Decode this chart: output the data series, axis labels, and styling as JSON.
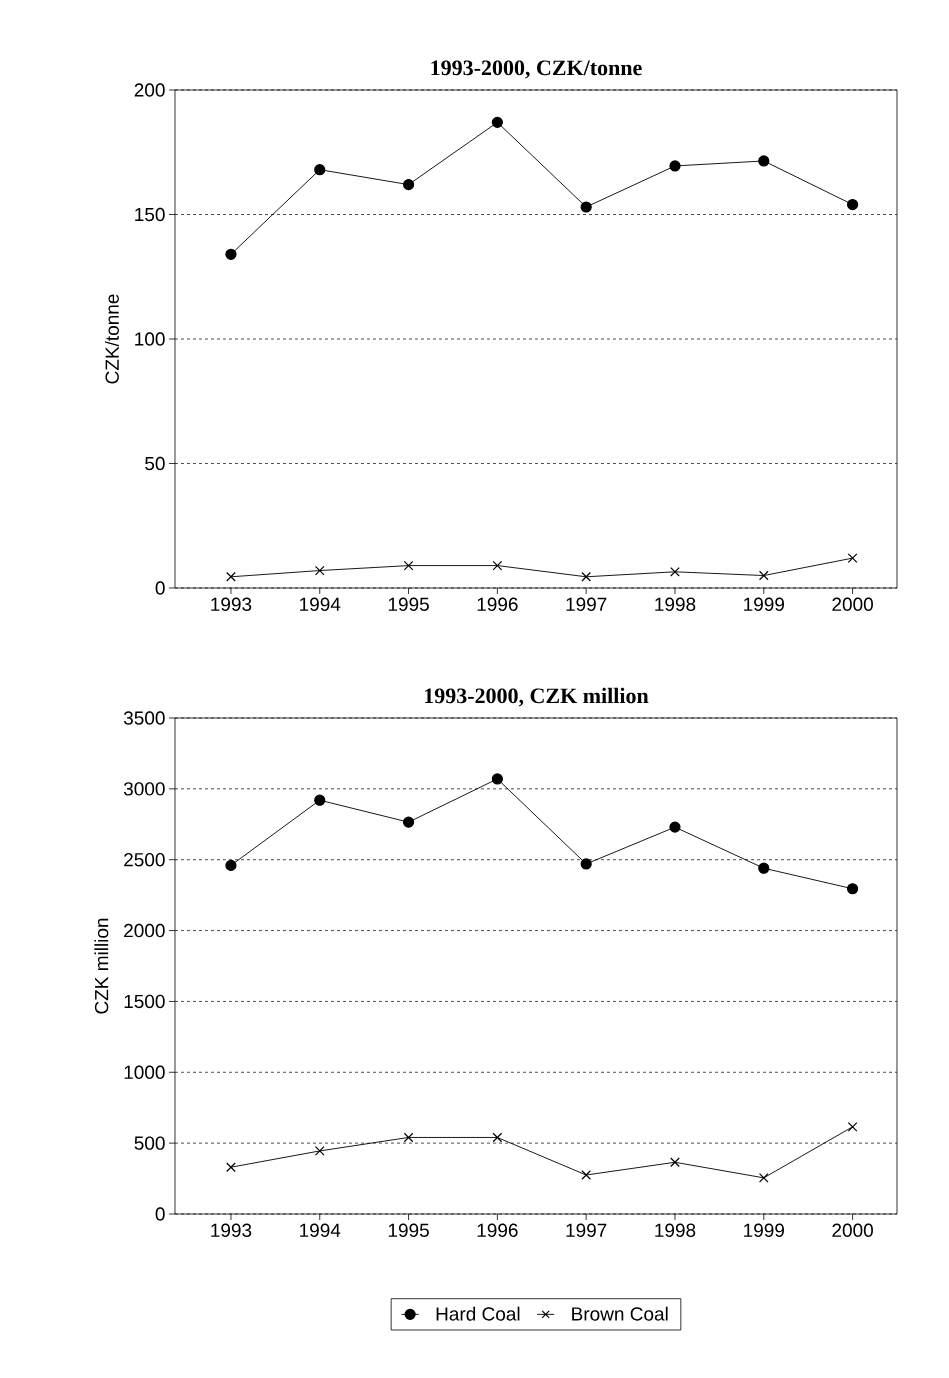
{
  "chart_data": [
    {
      "type": "line",
      "title": "1993-2000, CZK/tonne",
      "ylabel": "CZK/tonne",
      "categories": [
        "1993",
        "1994",
        "1995",
        "1996",
        "1997",
        "1998",
        "1999",
        "2000"
      ],
      "series": [
        {
          "color": "#000000",
          "marker": "circle",
          "values": [
            134,
            168,
            162,
            187,
            153,
            169.5,
            171.5,
            154
          ]
        },
        {
          "color": "#000000",
          "marker": "cross",
          "values": [
            4.5,
            7,
            9,
            9,
            4.5,
            6.5,
            5,
            12
          ]
        }
      ],
      "ylim": [
        0,
        200
      ],
      "yticks": [
        0,
        50,
        100,
        150,
        200
      ],
      "grid": "y"
    },
    {
      "type": "line",
      "title": "1993-2000, CZK million",
      "ylabel": "CZK million",
      "categories": [
        "1993",
        "1994",
        "1995",
        "1996",
        "1997",
        "1998",
        "1999",
        "2000"
      ],
      "series": [
        {
          "name": "Hard Coal",
          "color": "#000000",
          "marker": "circle",
          "values": [
            2460,
            2920,
            2765,
            3070,
            2470,
            2730,
            2440,
            2295
          ]
        },
        {
          "name": "Brown Coal",
          "color": "#000000",
          "marker": "cross",
          "values": [
            330,
            445,
            540,
            540,
            275,
            365,
            255,
            615
          ]
        }
      ],
      "ylim": [
        0,
        3500
      ],
      "yticks": [
        0,
        500,
        1000,
        1500,
        2000,
        2500,
        3000,
        3500
      ],
      "grid": "y",
      "legend": "bottom"
    }
  ]
}
